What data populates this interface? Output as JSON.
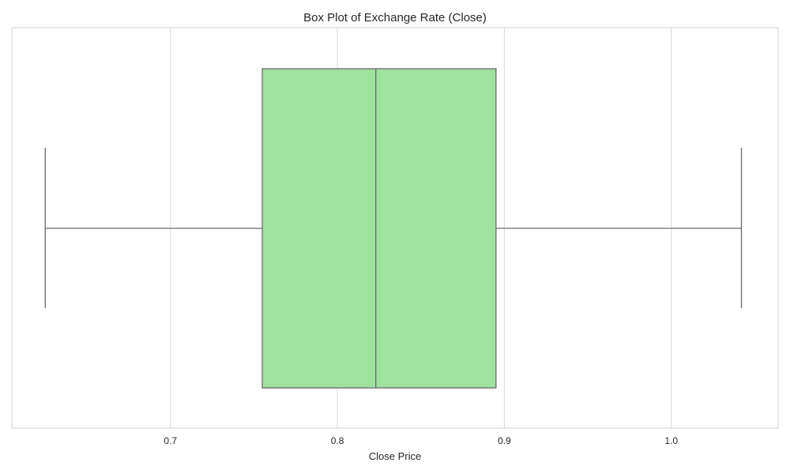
{
  "chart_data": {
    "type": "box",
    "title": "Box Plot of Exchange Rate (Close)",
    "xlabel": "Close Price",
    "ylabel": "",
    "xlim": [
      0.605,
      1.064
    ],
    "xticks": [
      0.7,
      0.8,
      0.9,
      1.0
    ],
    "xtick_labels": [
      "0.7",
      "0.8",
      "0.9",
      "1.0"
    ],
    "grid": true,
    "orientation": "horizontal",
    "box": {
      "whisker_low": 0.625,
      "q1": 0.755,
      "median": 0.823,
      "q3": 0.895,
      "whisker_high": 1.042
    },
    "colors": {
      "box_fill": "#9ee29d",
      "line": "#6b6b6b",
      "grid": "#d9d9d9",
      "frame": "#d0d0d0"
    }
  }
}
